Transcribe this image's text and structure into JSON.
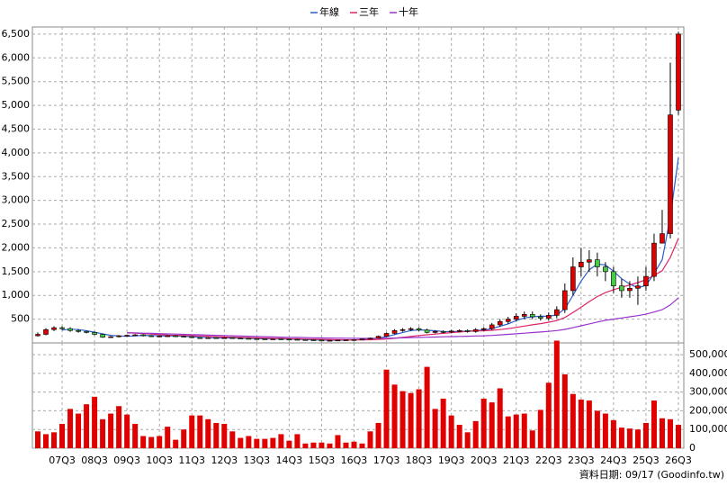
{
  "chart_data": [
    {
      "type": "candlestick",
      "open": [
        150,
        180,
        280,
        320,
        300,
        260,
        240,
        220,
        180,
        120,
        130,
        150,
        160,
        170,
        150,
        140,
        145,
        150,
        140,
        130,
        110,
        100,
        110,
        105,
        110,
        100,
        95,
        90,
        85,
        80,
        85,
        80,
        75,
        70,
        65,
        60,
        55,
        55,
        60,
        65,
        70,
        80,
        100,
        140,
        200,
        260,
        280,
        300,
        270,
        220,
        240,
        230,
        250,
        260,
        240,
        280,
        300,
        380,
        450,
        500,
        560,
        600,
        550,
        520,
        580,
        700,
        1100,
        1600,
        1700,
        1750,
        1600,
        1500,
        1200,
        1100,
        1150,
        1200,
        1400,
        2100,
        2300,
        4900
      ],
      "high": [
        220,
        310,
        350,
        350,
        330,
        290,
        260,
        240,
        200,
        145,
        165,
        175,
        185,
        185,
        165,
        160,
        165,
        165,
        155,
        145,
        120,
        120,
        120,
        120,
        120,
        110,
        105,
        100,
        95,
        95,
        95,
        90,
        85,
        80,
        75,
        65,
        60,
        65,
        70,
        80,
        90,
        110,
        155,
        220,
        290,
        310,
        330,
        330,
        300,
        265,
        265,
        275,
        285,
        285,
        310,
        330,
        420,
        500,
        550,
        620,
        660,
        660,
        600,
        640,
        770,
        1250,
        1800,
        2000,
        1950,
        1900,
        1700,
        1600,
        1350,
        1300,
        1400,
        1600,
        2300,
        2800,
        5900,
        6550
      ],
      "low": [
        135,
        160,
        250,
        270,
        235,
        215,
        200,
        160,
        105,
        105,
        115,
        135,
        145,
        135,
        125,
        125,
        130,
        125,
        115,
        100,
        90,
        90,
        95,
        95,
        90,
        85,
        80,
        75,
        70,
        70,
        70,
        65,
        60,
        55,
        55,
        50,
        50,
        50,
        55,
        60,
        65,
        70,
        90,
        125,
        180,
        235,
        250,
        245,
        200,
        200,
        205,
        205,
        225,
        215,
        215,
        250,
        270,
        340,
        400,
        450,
        500,
        500,
        470,
        470,
        520,
        630,
        1000,
        1400,
        1500,
        1400,
        1300,
        1050,
        950,
        950,
        800,
        1100,
        1300,
        2100,
        2200,
        4800
      ],
      "close": [
        180,
        280,
        320,
        300,
        260,
        240,
        220,
        180,
        120,
        130,
        150,
        160,
        170,
        150,
        140,
        145,
        150,
        140,
        130,
        110,
        100,
        110,
        105,
        110,
        100,
        95,
        90,
        85,
        80,
        85,
        80,
        75,
        70,
        65,
        60,
        55,
        55,
        60,
        65,
        70,
        80,
        100,
        140,
        200,
        260,
        280,
        300,
        270,
        220,
        240,
        230,
        250,
        260,
        240,
        280,
        300,
        380,
        450,
        500,
        560,
        600,
        550,
        520,
        580,
        700,
        1100,
        1600,
        1700,
        1750,
        1600,
        1500,
        1200,
        1100,
        1150,
        1200,
        1400,
        2100,
        2300,
        4800,
        6500
      ],
      "up_color": "#e00000",
      "down_color": "#44cc44",
      "series": [
        {
          "name": "年線",
          "color": "#2a5fcc",
          "values": [
            null,
            null,
            null,
            270,
            290,
            280,
            255,
            225,
            190,
            160,
            145,
            140,
            150,
            160,
            155,
            150,
            145,
            145,
            140,
            130,
            120,
            110,
            105,
            105,
            105,
            100,
            95,
            90,
            85,
            85,
            82,
            80,
            75,
            70,
            65,
            60,
            57,
            57,
            60,
            63,
            70,
            80,
            100,
            130,
            175,
            220,
            260,
            275,
            265,
            255,
            240,
            235,
            245,
            245,
            260,
            270,
            300,
            350,
            400,
            470,
            525,
            550,
            560,
            560,
            590,
            720,
            1000,
            1300,
            1540,
            1660,
            1640,
            1510,
            1350,
            1240,
            1160,
            1210,
            1460,
            1750,
            2650,
            3900
          ]
        },
        {
          "name": "三年",
          "color": "#dd2266",
          "values": [
            null,
            null,
            null,
            null,
            null,
            null,
            null,
            null,
            null,
            null,
            null,
            210,
            205,
            195,
            185,
            175,
            165,
            160,
            155,
            150,
            145,
            140,
            130,
            125,
            120,
            115,
            110,
            105,
            100,
            95,
            92,
            88,
            85,
            80,
            77,
            73,
            70,
            67,
            65,
            63,
            63,
            66,
            72,
            82,
            97,
            115,
            135,
            155,
            170,
            185,
            200,
            215,
            230,
            245,
            250,
            255,
            265,
            280,
            300,
            325,
            355,
            380,
            405,
            435,
            470,
            535,
            640,
            750,
            870,
            975,
            1060,
            1120,
            1170,
            1220,
            1270,
            1330,
            1420,
            1520,
            1800,
            2200
          ]
        },
        {
          "name": "十年",
          "color": "#9933cc",
          "values": [
            null,
            null,
            null,
            null,
            null,
            null,
            null,
            null,
            null,
            null,
            null,
            215,
            210,
            205,
            200,
            195,
            190,
            185,
            180,
            175,
            170,
            165,
            160,
            155,
            150,
            145,
            140,
            135,
            130,
            125,
            122,
            118,
            115,
            112,
            108,
            105,
            102,
            100,
            98,
            96,
            95,
            95,
            96,
            98,
            102,
            107,
            112,
            116,
            120,
            124,
            128,
            132,
            136,
            140,
            145,
            150,
            158,
            168,
            180,
            192,
            205,
            218,
            230,
            243,
            260,
            285,
            320,
            360,
            400,
            440,
            475,
            500,
            525,
            550,
            575,
            605,
            650,
            700,
            800,
            950
          ]
        }
      ],
      "ylim": [
        0,
        6650
      ],
      "yticks": [
        500,
        {
          "value": 1000,
          "label": "1,000"
        },
        {
          "value": 1500,
          "label": "1,500"
        },
        {
          "value": 2000,
          "label": "2,000"
        },
        {
          "value": 2500,
          "label": "2,500"
        },
        {
          "value": 3000,
          "label": "3,000"
        },
        {
          "value": 3500,
          "label": "3,500"
        },
        {
          "value": 4000,
          "label": "4,000"
        },
        {
          "value": 4500,
          "label": "4,500"
        },
        {
          "value": 5000,
          "label": "5,000"
        },
        {
          "value": 5500,
          "label": "5,500"
        },
        {
          "value": 6000,
          "label": "6,000"
        },
        {
          "value": 6500,
          "label": "6,500"
        }
      ],
      "grid": true
    },
    {
      "type": "bar",
      "categories": [
        null,
        null,
        null,
        "07Q3",
        null,
        null,
        null,
        "08Q3",
        null,
        null,
        null,
        "09Q3",
        null,
        null,
        null,
        "10Q3",
        null,
        null,
        null,
        "11Q3",
        null,
        null,
        null,
        "12Q3",
        null,
        null,
        null,
        "13Q3",
        null,
        null,
        null,
        "14Q3",
        null,
        null,
        null,
        "15Q3",
        null,
        null,
        null,
        "16Q3",
        null,
        null,
        null,
        "17Q3",
        null,
        null,
        null,
        "18Q3",
        null,
        null,
        null,
        "19Q3",
        null,
        null,
        null,
        "20Q3",
        null,
        null,
        null,
        "21Q3",
        null,
        null,
        null,
        "22Q3",
        null,
        null,
        null,
        "23Q3",
        null,
        null,
        null,
        "24Q3",
        null,
        null,
        null,
        "25Q3",
        null,
        null,
        null,
        "26Q3"
      ],
      "values": [
        90000,
        75000,
        85000,
        130000,
        210000,
        185000,
        235000,
        275000,
        155000,
        185000,
        225000,
        180000,
        130000,
        65000,
        60000,
        65000,
        115000,
        45000,
        100000,
        175000,
        175000,
        155000,
        135000,
        130000,
        90000,
        55000,
        65000,
        50000,
        50000,
        55000,
        75000,
        40000,
        75000,
        25000,
        30000,
        30000,
        25000,
        70000,
        30000,
        35000,
        25000,
        90000,
        135000,
        420000,
        340000,
        305000,
        295000,
        315000,
        435000,
        210000,
        265000,
        175000,
        125000,
        85000,
        145000,
        265000,
        245000,
        320000,
        170000,
        180000,
        185000,
        95000,
        205000,
        350000,
        575000,
        395000,
        290000,
        260000,
        255000,
        200000,
        185000,
        150000,
        110000,
        105000,
        100000,
        135000,
        255000,
        160000,
        155000,
        125000
      ],
      "color": "#e00000",
      "ylim": [
        0,
        563000
      ],
      "yticks": [
        0,
        {
          "value": 100000,
          "label": "100,000"
        },
        {
          "value": 200000,
          "label": "200,000"
        },
        {
          "value": 300000,
          "label": "300,000"
        },
        {
          "value": 400000,
          "label": "400,000"
        },
        {
          "value": 500000,
          "label": "500,000"
        }
      ],
      "grid": true,
      "note": "資料日期: 09/17 (Goodinfo.tw)"
    }
  ]
}
